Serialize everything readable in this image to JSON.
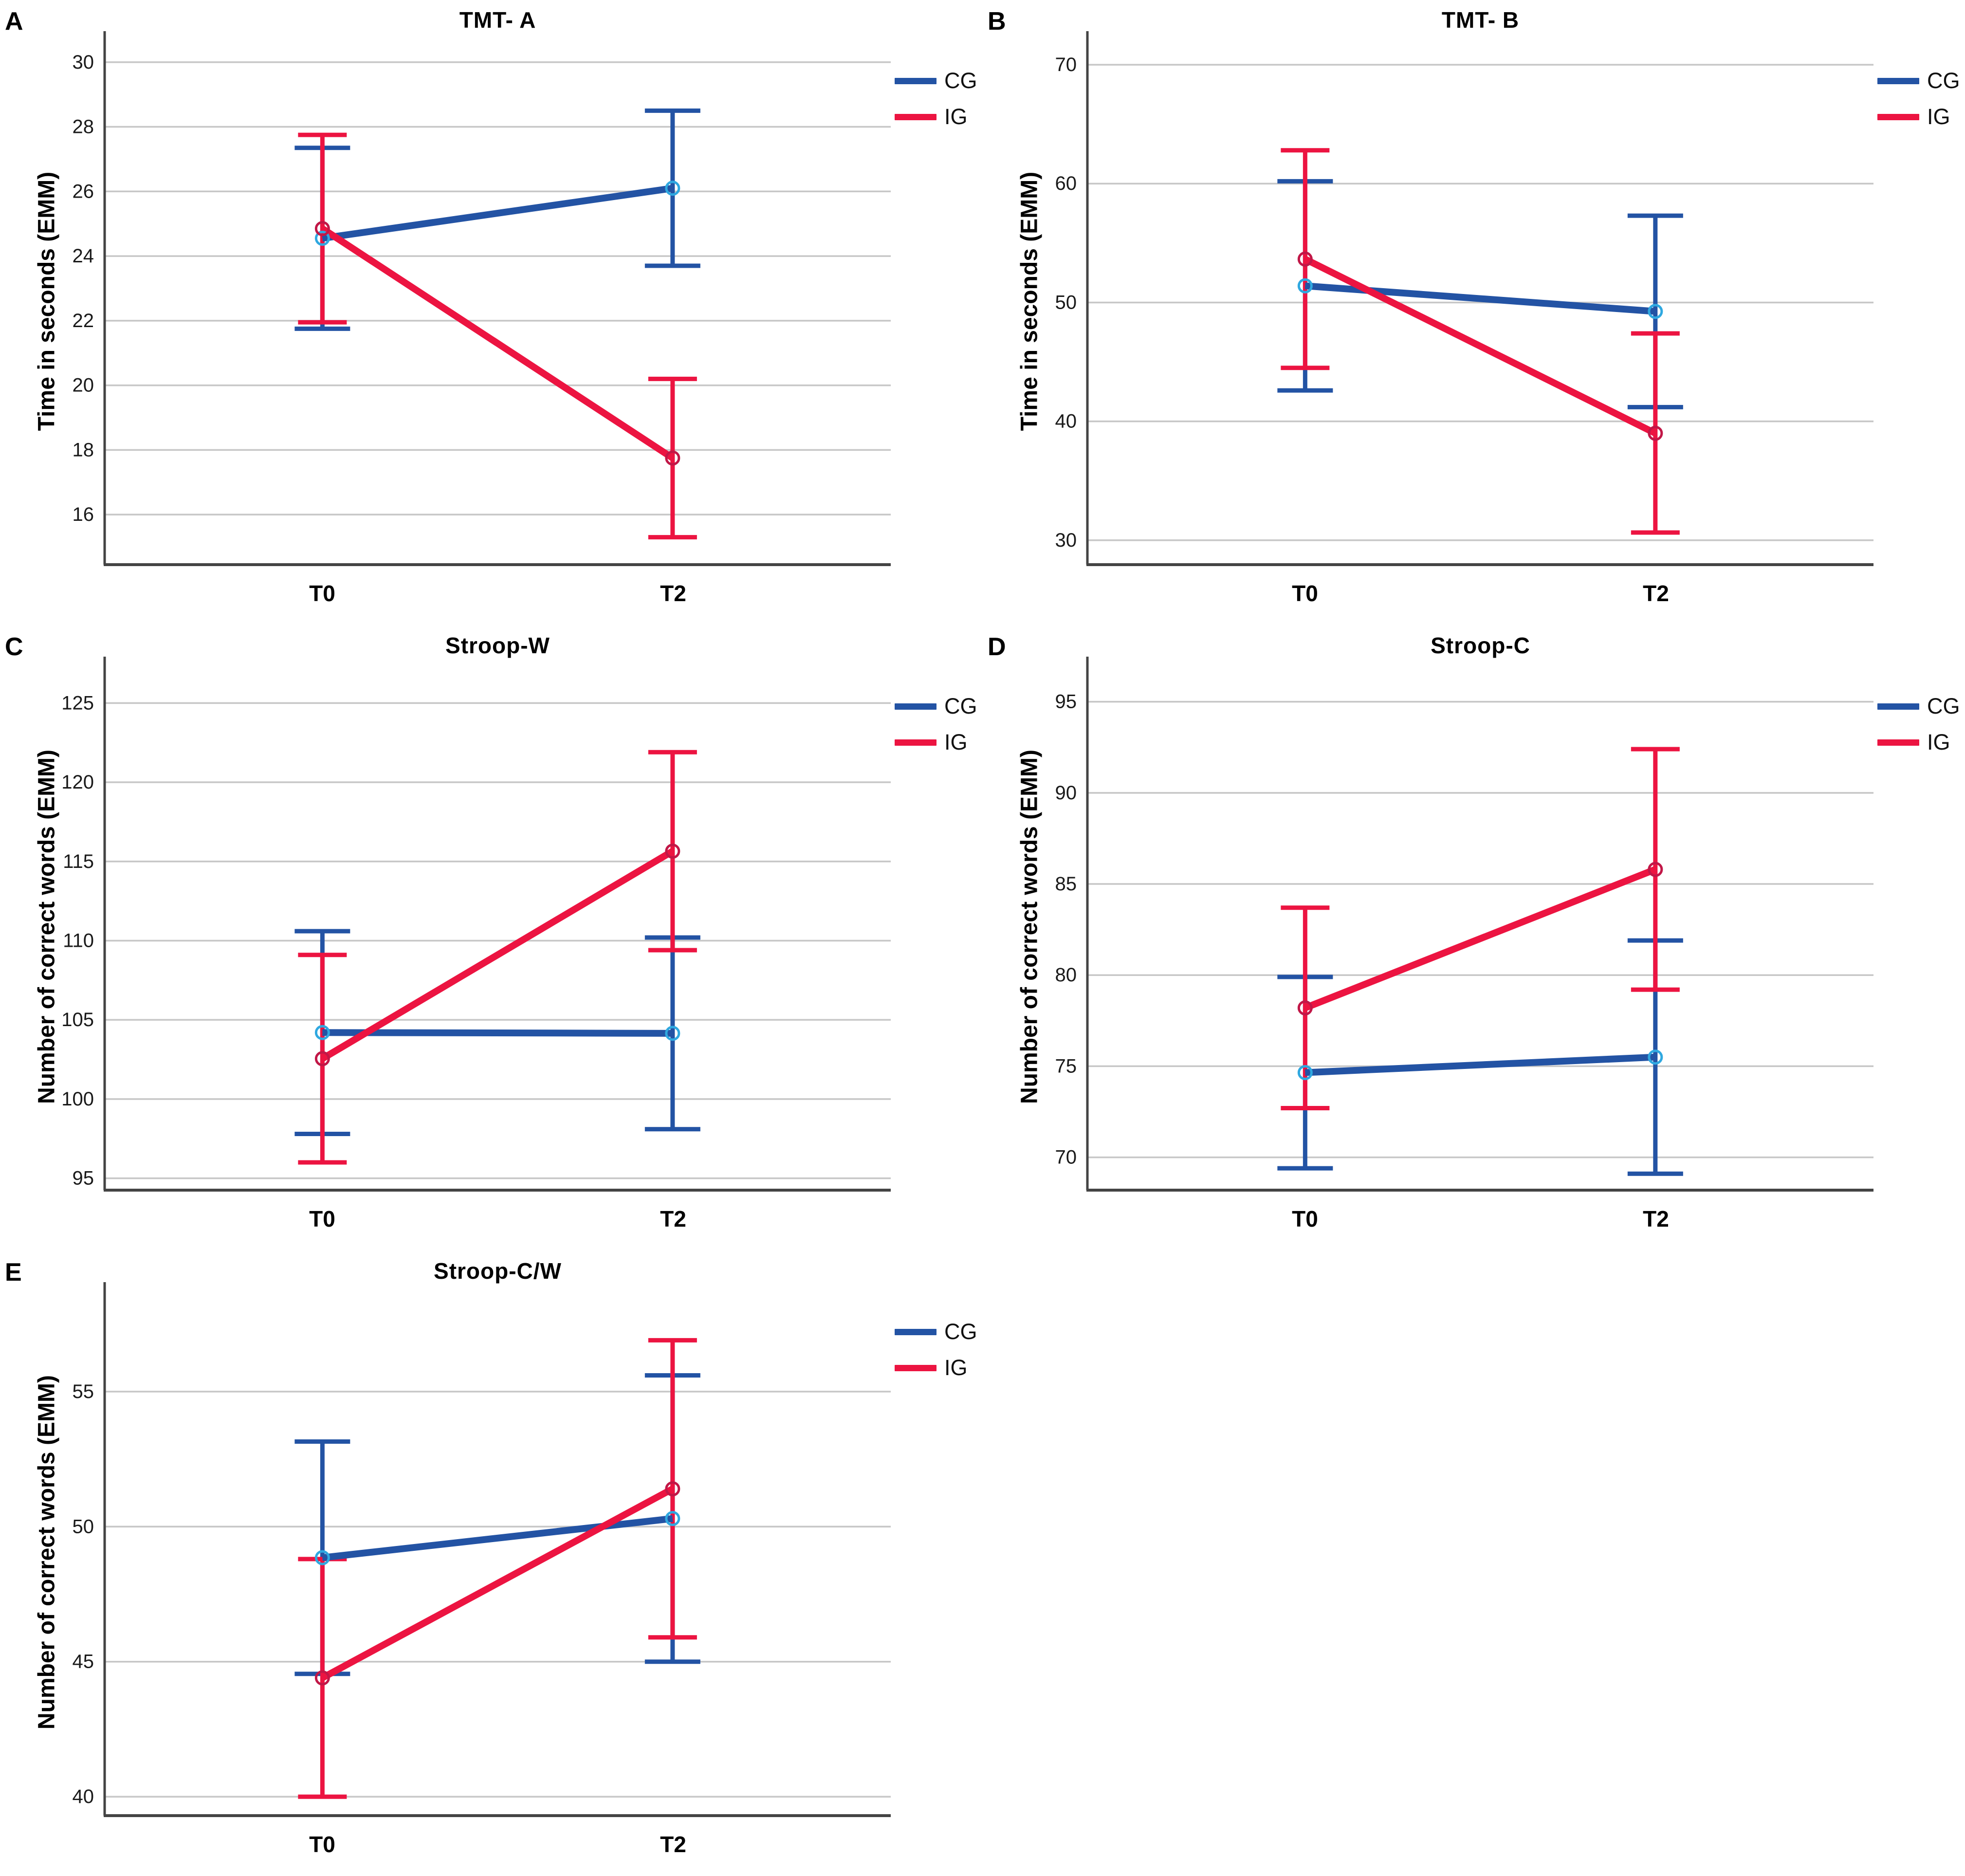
{
  "figure": {
    "background": "#ffffff"
  },
  "colors": {
    "cg_line": "#2353A4",
    "ig_line": "#EC1441",
    "cg_marker": "#2FA8E0",
    "ig_marker": "#C11747",
    "grid": "#C7C7C7",
    "axis": "#444444",
    "tick_text": "#1a1a1a"
  },
  "legend": {
    "items": [
      {
        "label": "CG",
        "color_key": "cg_line"
      },
      {
        "label": "IG",
        "color_key": "ig_line"
      }
    ]
  },
  "chart_data": [
    {
      "panel": "A",
      "type": "line",
      "title": "TMT- A",
      "ylabel": "Time in seconds (EMM)",
      "xlabel": "",
      "categories": [
        "T0",
        "T2"
      ],
      "yticks": [
        16,
        18,
        20,
        22,
        24,
        26,
        28,
        30
      ],
      "ylim": [
        14.45,
        30.75
      ],
      "grid": true,
      "legend_position": "top-right",
      "legend_labels": [
        "CG",
        "IG"
      ],
      "series": [
        {
          "name": "CG",
          "color_key": "cg_line",
          "marker_key": "cg_marker",
          "values": [
            24.55,
            26.1
          ],
          "ci_low": [
            21.75,
            23.7
          ],
          "ci_high": [
            27.35,
            28.5
          ]
        },
        {
          "name": "IG",
          "color_key": "ig_line",
          "marker_key": "ig_marker",
          "values": [
            24.85,
            17.75
          ],
          "ci_low": [
            21.95,
            15.3
          ],
          "ci_high": [
            27.75,
            20.2
          ]
        }
      ]
    },
    {
      "panel": "B",
      "type": "line",
      "title": "TMT- B",
      "ylabel": "Time in seconds (EMM)",
      "xlabel": "",
      "categories": [
        "T0",
        "T2"
      ],
      "yticks": [
        30,
        40,
        50,
        60,
        70
      ],
      "ylim": [
        27.95,
        72.25
      ],
      "grid": true,
      "legend_position": "top-right",
      "legend_labels": [
        "CG",
        "IG"
      ],
      "series": [
        {
          "name": "CG",
          "color_key": "cg_line",
          "marker_key": "cg_marker",
          "values": [
            51.4,
            49.25
          ],
          "ci_low": [
            42.6,
            41.2
          ],
          "ci_high": [
            60.2,
            57.3
          ]
        },
        {
          "name": "IG",
          "color_key": "ig_line",
          "marker_key": "ig_marker",
          "values": [
            53.65,
            39.0
          ],
          "ci_low": [
            44.5,
            30.65
          ],
          "ci_high": [
            62.8,
            47.4
          ]
        }
      ]
    },
    {
      "panel": "C",
      "type": "line",
      "title": "Stroop-W",
      "ylabel": "Number of correct words (EMM)",
      "xlabel": "",
      "categories": [
        "T0",
        "T2"
      ],
      "yticks": [
        95,
        100,
        105,
        110,
        115,
        120,
        125
      ],
      "ylim": [
        94.25,
        127.5
      ],
      "grid": true,
      "legend_position": "top-right",
      "legend_labels": [
        "CG",
        "IG"
      ],
      "series": [
        {
          "name": "CG",
          "color_key": "cg_line",
          "marker_key": "cg_marker",
          "values": [
            104.2,
            104.15
          ],
          "ci_low": [
            97.8,
            98.1
          ],
          "ci_high": [
            110.6,
            110.2
          ]
        },
        {
          "name": "IG",
          "color_key": "ig_line",
          "marker_key": "ig_marker",
          "values": [
            102.55,
            115.65
          ],
          "ci_low": [
            96.0,
            109.4
          ],
          "ci_high": [
            109.1,
            121.9
          ]
        }
      ]
    },
    {
      "panel": "D",
      "type": "line",
      "title": "Stroop-C",
      "ylabel": "Number of correct words (EMM)",
      "xlabel": "",
      "categories": [
        "T0",
        "T2"
      ],
      "yticks": [
        70,
        75,
        80,
        85,
        90,
        95
      ],
      "ylim": [
        68.2,
        97.1
      ],
      "grid": true,
      "legend_position": "top-right",
      "legend_labels": [
        "CG",
        "IG"
      ],
      "series": [
        {
          "name": "CG",
          "color_key": "cg_line",
          "marker_key": "cg_marker",
          "values": [
            74.65,
            75.5
          ],
          "ci_low": [
            69.4,
            69.1
          ],
          "ci_high": [
            79.9,
            81.9
          ]
        },
        {
          "name": "IG",
          "color_key": "ig_line",
          "marker_key": "ig_marker",
          "values": [
            78.2,
            85.8
          ],
          "ci_low": [
            72.7,
            79.2
          ],
          "ci_high": [
            83.7,
            92.4
          ]
        }
      ]
    },
    {
      "panel": "E",
      "type": "line",
      "title": "Stroop-C/W",
      "ylabel": "Number of correct words (EMM)",
      "xlabel": "",
      "categories": [
        "T0",
        "T2"
      ],
      "yticks": [
        40,
        45,
        50,
        55
      ],
      "ylim": [
        39.3,
        58.8
      ],
      "grid": true,
      "legend_position": "top-right",
      "legend_labels": [
        "CG",
        "IG"
      ],
      "series": [
        {
          "name": "CG",
          "color_key": "cg_line",
          "marker_key": "cg_marker",
          "values": [
            48.85,
            50.3
          ],
          "ci_low": [
            44.55,
            45.0
          ],
          "ci_high": [
            53.15,
            55.6
          ]
        },
        {
          "name": "IG",
          "color_key": "ig_line",
          "marker_key": "ig_marker",
          "values": [
            44.4,
            51.4
          ],
          "ci_low": [
            40.0,
            45.9
          ],
          "ci_high": [
            48.8,
            56.9
          ]
        }
      ]
    }
  ]
}
